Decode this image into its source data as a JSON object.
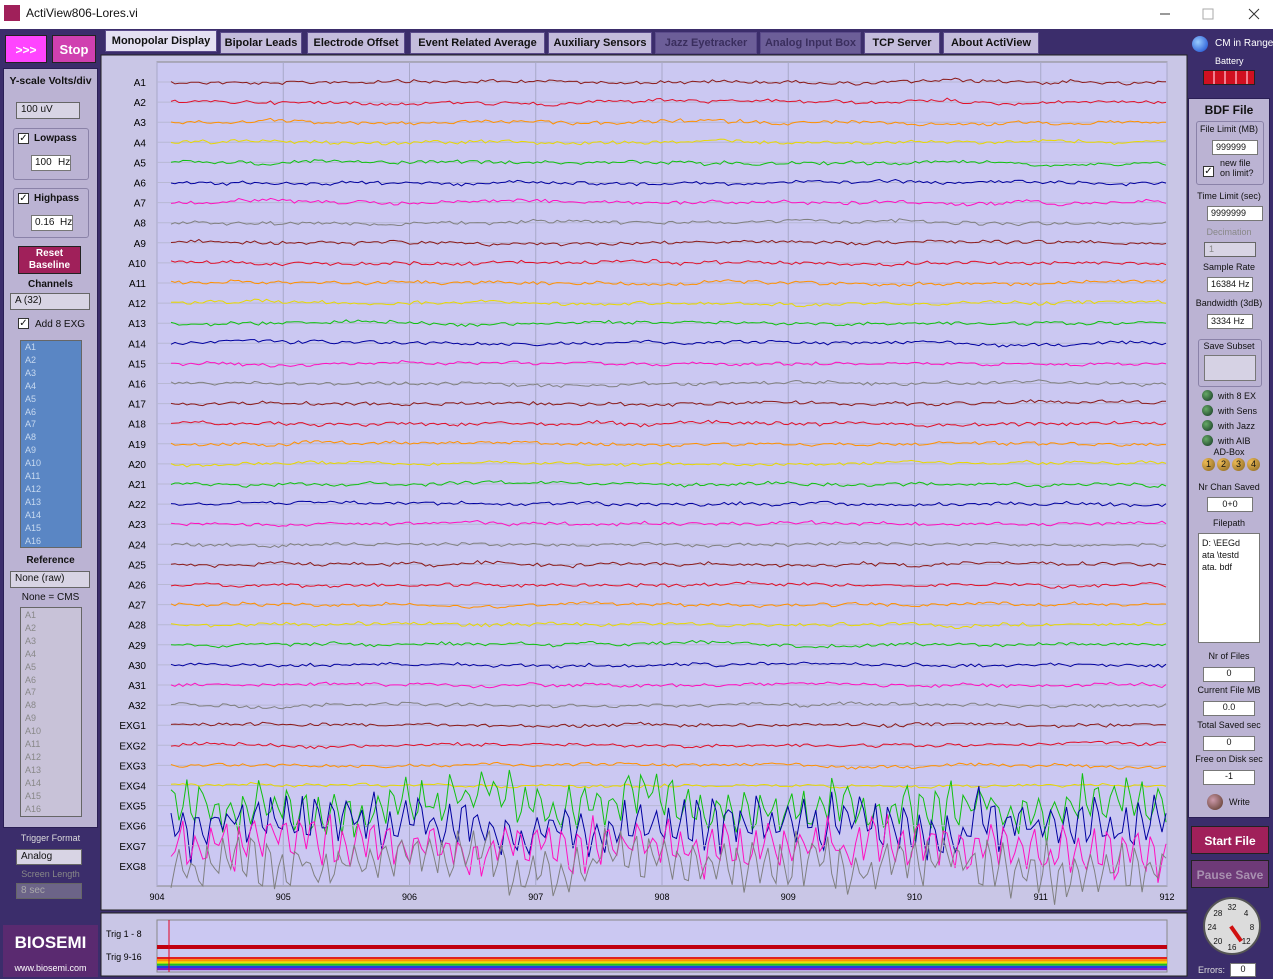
{
  "window": {
    "title": "ActiView806-Lores.vi"
  },
  "toolbar": {
    "run": ">>>",
    "stop": "Stop"
  },
  "tabs": [
    "Monopolar Display",
    "Bipolar Leads",
    "Electrode Offset",
    "Event Related Average",
    "Auxiliary Sensors",
    "Jazz Eyetracker",
    "Analog Input Box",
    "TCP Server",
    "About ActiView"
  ],
  "status": {
    "cm": "CM in Range",
    "battery": "Battery"
  },
  "left": {
    "yscale_label": "Y-scale Volts/div",
    "yscale_value": "100 uV",
    "lowpass_label": "Lowpass",
    "lowpass_value": "100",
    "lowpass_unit": "Hz",
    "highpass_label": "Highpass",
    "highpass_value": "0.16",
    "highpass_unit": "Hz",
    "reset": "Reset Baseline",
    "channels_label": "Channels",
    "channels_value": "A (32)",
    "add_exg": "Add 8 EXG",
    "channel_list": [
      "A1",
      "A2",
      "A3",
      "A4",
      "A5",
      "A6",
      "A7",
      "A8",
      "A9",
      "A10",
      "A11",
      "A12",
      "A13",
      "A14",
      "A15",
      "A16"
    ],
    "reference_label": "Reference",
    "reference_value": "None (raw)",
    "reference_note": "None = CMS",
    "reference_list": [
      "A1",
      "A2",
      "A3",
      "A4",
      "A5",
      "A6",
      "A7",
      "A8",
      "A9",
      "A10",
      "A11",
      "A12",
      "A13",
      "A14",
      "A15",
      "A16"
    ],
    "trigger_format_label": "Trigger Format",
    "trigger_format_value": "Analog",
    "screen_length_label": "Screen Length",
    "screen_length_value": "8 sec"
  },
  "logo": {
    "name": "BIOSEMI",
    "url": "www.biosemi.com"
  },
  "plot": {
    "channels": [
      "A1",
      "A2",
      "A3",
      "A4",
      "A5",
      "A6",
      "A7",
      "A8",
      "A9",
      "A10",
      "A11",
      "A12",
      "A13",
      "A14",
      "A15",
      "A16",
      "A17",
      "A18",
      "A19",
      "A20",
      "A21",
      "A22",
      "A23",
      "A24",
      "A25",
      "A26",
      "A27",
      "A28",
      "A29",
      "A30",
      "A31",
      "A32",
      "EXG1",
      "EXG2",
      "EXG3",
      "EXG4",
      "EXG5",
      "EXG6",
      "EXG7",
      "EXG8"
    ],
    "x_ticks": [
      904,
      905,
      906,
      907,
      908,
      909,
      910,
      911,
      912
    ]
  },
  "trigger": {
    "labels": [
      "Trig 1 - 8",
      "Trig 9-16"
    ]
  },
  "right": {
    "bdf_title": "BDF File",
    "file_limit_label": "File Limit (MB)",
    "file_limit_value": "999999",
    "new_file": "new file on limit?",
    "time_limit_label": "Time Limit (sec)",
    "time_limit_value": "9999999",
    "decimation_label": "Decimation",
    "decimation_value": "1",
    "sample_rate_label": "Sample Rate",
    "sample_rate_value": "16384 Hz",
    "bandwidth_label": "Bandwidth (3dB)",
    "bandwidth_value": "3334  Hz",
    "save_subset_label": "Save Subset",
    "leds": [
      "with 8 EX",
      "with Sens",
      "with Jazz",
      "with AIB"
    ],
    "ad_box_label": "AD-Box",
    "ad_box": [
      "1",
      "2",
      "3",
      "4"
    ],
    "nr_chan_label": "Nr Chan Saved",
    "nr_chan_value": "0+0",
    "filepath_label": "Filepath",
    "filepath_value": "D: \\EEGdata \\testdata. bdf",
    "nr_files_label": "Nr of Files",
    "nr_files_value": "0",
    "current_mb_label": "Current File MB",
    "current_mb_value": "0.0",
    "total_saved_label": "Total Saved sec",
    "total_saved_value": "0",
    "free_disk_label": "Free on Disk sec",
    "free_disk_value": "-1",
    "write": "Write",
    "start_file": "Start File",
    "pause_save": "Pause Save",
    "dial": [
      "32",
      "4",
      "8",
      "12",
      "16",
      "20",
      "24",
      "28"
    ],
    "errors_label": "Errors:",
    "errors_value": "0"
  }
}
